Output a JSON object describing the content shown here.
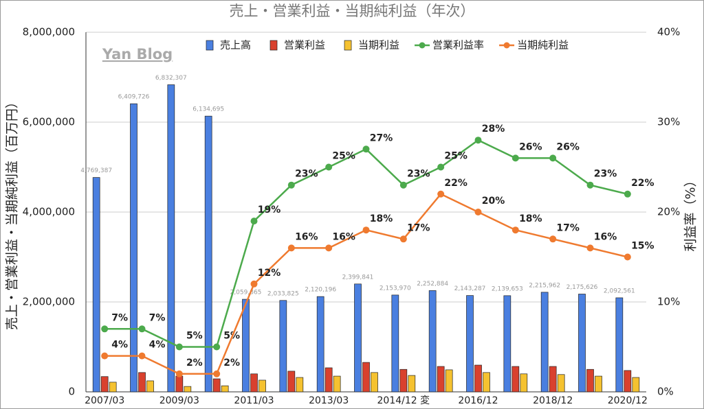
{
  "chart_data": {
    "type": "bar_line",
    "title": "売上・営業利益・当期純利益（年次）",
    "y_label": "売上・営業利益・当期純利益（百万円）",
    "y2_label": "利益率（%）",
    "annotation": "Yan Blog",
    "categories": [
      "2007/03",
      null,
      "2009/03",
      null,
      "2011/03",
      null,
      "2013/03",
      null,
      "2014/12 変",
      null,
      "2016/12",
      null,
      "2018/12",
      null,
      "2020/12"
    ],
    "ylim": [
      0,
      8000000
    ],
    "yticks": [
      0,
      {
        "value": 2000000,
        "label": "2,000,000"
      },
      {
        "value": 4000000,
        "label": "4,000,000"
      },
      {
        "value": 6000000,
        "label": "6,000,000"
      },
      {
        "value": 8000000,
        "label": "8,000,000"
      }
    ],
    "y2lim": [
      0,
      40
    ],
    "y2ticks": [
      {
        "value": 0,
        "label": "0%"
      },
      {
        "value": 10,
        "label": "10%"
      },
      {
        "value": 20,
        "label": "20%"
      },
      {
        "value": 30,
        "label": "30%"
      },
      {
        "value": 40,
        "label": "40%"
      }
    ],
    "grid": true,
    "legend": "top",
    "series": [
      {
        "name": "売上高",
        "color": "#4a7fe0",
        "kind": "bar",
        "values": [
          4769387,
          6409726,
          6832307,
          6134695,
          2059865,
          2033825,
          2120196,
          2399841,
          2153970,
          2252884,
          2143287,
          2139653,
          2215962,
          2175626,
          2092561
        ],
        "value_labels": [
          "4,769,387",
          "6,409,726",
          "6,832,307",
          "6,134,695",
          "2,059,865",
          "2,033,825",
          "2,120,196",
          "2,399,841",
          "2,153,970",
          "2,252,884",
          "2,143,287",
          "2,139,653",
          "2,215,962",
          "2,175,626",
          "2,092,561"
        ]
      },
      {
        "name": "営業利益",
        "color": "#d9412e",
        "kind": "bar",
        "values": [
          340000,
          430000,
          350000,
          290000,
          400000,
          460000,
          535000,
          655000,
          500000,
          565000,
          595000,
          565000,
          565000,
          500000,
          475000
        ]
      },
      {
        "name": "当期利益",
        "color": "#f5c230",
        "kind": "bar",
        "values": [
          215000,
          245000,
          120000,
          135000,
          260000,
          320000,
          350000,
          430000,
          365000,
          490000,
          430000,
          400000,
          385000,
          350000,
          320000
        ]
      },
      {
        "name": "営業利益率",
        "color": "#4caa4c",
        "kind": "line",
        "axis": "y2",
        "values": [
          7,
          7,
          5,
          5,
          19,
          23,
          25,
          27,
          23,
          25,
          28,
          26,
          26,
          23,
          22
        ],
        "value_labels": [
          "7%",
          "7%",
          "5%",
          "5%",
          "19%",
          "23%",
          "25%",
          "27%",
          "23%",
          "25%",
          "28%",
          "26%",
          "26%",
          "23%",
          "22%"
        ]
      },
      {
        "name": "当期純利益",
        "color": "#ef7a2f",
        "kind": "line",
        "axis": "y2",
        "values": [
          4,
          4,
          2,
          2,
          12,
          16,
          16,
          18,
          17,
          22,
          20,
          18,
          17,
          16,
          15
        ],
        "value_labels": [
          "4%",
          "4%",
          "2%",
          "2%",
          "12%",
          "16%",
          "16%",
          "18%",
          "17%",
          "22%",
          "20%",
          "18%",
          "17%",
          "16%",
          "15%"
        ]
      }
    ]
  }
}
